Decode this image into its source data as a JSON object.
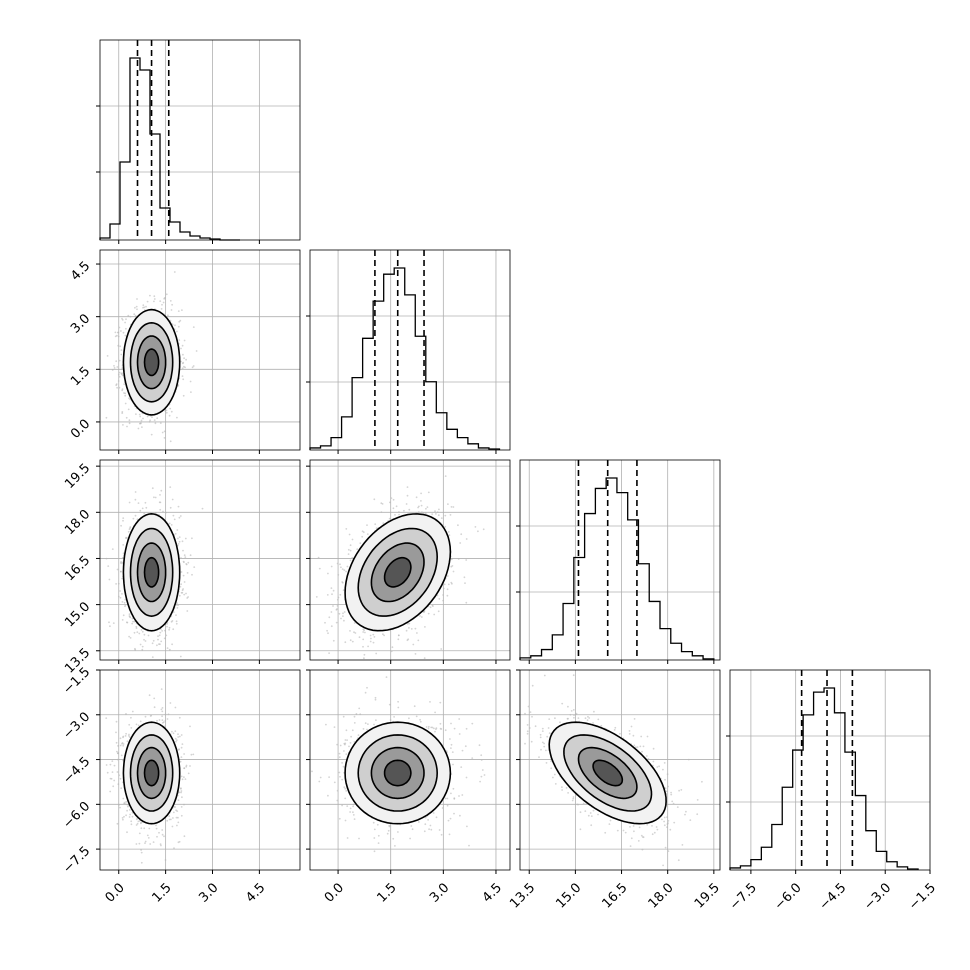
{
  "chart_data": {
    "type": "corner",
    "parameters": [
      {
        "name": "",
        "range": [
          -0.6,
          5.8
        ],
        "ticks": [
          0.0,
          1.5,
          3.0,
          4.5
        ],
        "tick_labels": [
          "0.0",
          "1.5",
          "3.0",
          "4.5"
        ]
      },
      {
        "name": "",
        "range": [
          -0.8,
          4.9
        ],
        "ticks": [
          0.0,
          1.5,
          3.0,
          4.5
        ],
        "tick_labels": [
          "0.0",
          "1.5",
          "3.0",
          "4.5"
        ]
      },
      {
        "name": "",
        "range": [
          13.2,
          19.7
        ],
        "ticks": [
          13.5,
          15.0,
          16.5,
          18.0,
          19.5
        ],
        "tick_labels": [
          "13.5",
          "15.0",
          "16.5",
          "18.0",
          "19.5"
        ]
      },
      {
        "name": "",
        "range": [
          -8.2,
          -1.5
        ],
        "ticks": [
          -7.5,
          -6.0,
          -4.5,
          -3.0,
          -1.5
        ],
        "tick_labels": [
          "−7.5",
          "−6.0",
          "−4.5",
          "−3.0",
          "−1.5"
        ]
      }
    ],
    "marginals": [
      {
        "bins": [
          -0.6,
          -0.28,
          0.04,
          0.36,
          0.68,
          1.0,
          1.32,
          1.64,
          1.96,
          2.28,
          2.6,
          2.92,
          3.24,
          3.56,
          3.88
        ],
        "counts": [
          0.01,
          0.08,
          0.39,
          0.91,
          0.85,
          0.53,
          0.16,
          0.09,
          0.04,
          0.02,
          0.01,
          0.005,
          0,
          0
        ],
        "quantiles": [
          0.6,
          1.05,
          1.6
        ]
      },
      {
        "bins": [
          -0.8,
          -0.5,
          -0.2,
          0.1,
          0.4,
          0.7,
          1.0,
          1.3,
          1.6,
          1.9,
          2.2,
          2.5,
          2.8,
          3.1,
          3.4,
          3.7,
          4.0,
          4.3,
          4.6
        ],
        "counts": [
          0.01,
          0.02,
          0.06,
          0.16,
          0.35,
          0.54,
          0.72,
          0.85,
          0.88,
          0.75,
          0.55,
          0.33,
          0.18,
          0.1,
          0.06,
          0.03,
          0.01,
          0.005
        ],
        "quantiles": [
          1.05,
          1.7,
          2.45
        ]
      },
      {
        "bins": [
          13.2,
          13.55,
          13.9,
          14.25,
          14.6,
          14.95,
          15.3,
          15.65,
          16.0,
          16.35,
          16.7,
          17.05,
          17.4,
          17.75,
          18.1,
          18.45,
          18.8,
          19.15,
          19.5
        ],
        "counts": [
          0.01,
          0.02,
          0.05,
          0.12,
          0.27,
          0.49,
          0.7,
          0.82,
          0.87,
          0.8,
          0.67,
          0.46,
          0.28,
          0.15,
          0.08,
          0.04,
          0.02,
          0.005
        ],
        "quantiles": [
          15.1,
          16.05,
          17.0
        ]
      },
      {
        "bins": [
          -8.2,
          -7.85,
          -7.5,
          -7.15,
          -6.8,
          -6.45,
          -6.1,
          -5.75,
          -5.4,
          -5.05,
          -4.7,
          -4.35,
          -4.0,
          -3.65,
          -3.3,
          -2.95,
          -2.6,
          -2.25,
          -1.9
        ],
        "counts": [
          0.01,
          0.02,
          0.05,
          0.11,
          0.22,
          0.4,
          0.58,
          0.75,
          0.86,
          0.88,
          0.76,
          0.57,
          0.36,
          0.19,
          0.09,
          0.04,
          0.015,
          0.005
        ],
        "quantiles": [
          -5.8,
          -4.95,
          -4.1
        ]
      }
    ],
    "pairs": [
      {
        "x_param": 0,
        "y_param": 1,
        "mean": [
          1.05,
          1.7
        ],
        "sd": [
          0.45,
          0.75
        ],
        "rho": 0.0
      },
      {
        "x_param": 0,
        "y_param": 2,
        "mean": [
          1.05,
          16.05
        ],
        "sd": [
          0.45,
          0.95
        ],
        "rho": 0.0
      },
      {
        "x_param": 1,
        "y_param": 2,
        "mean": [
          1.7,
          16.05
        ],
        "sd": [
          0.75,
          0.95
        ],
        "rho": 0.35
      },
      {
        "x_param": 0,
        "y_param": 3,
        "mean": [
          1.05,
          -4.95
        ],
        "sd": [
          0.45,
          0.85
        ],
        "rho": 0.0
      },
      {
        "x_param": 1,
        "y_param": 3,
        "mean": [
          1.7,
          -4.95
        ],
        "sd": [
          0.75,
          0.85
        ],
        "rho": 0.0
      },
      {
        "x_param": 2,
        "y_param": 3,
        "mean": [
          16.05,
          -4.95
        ],
        "sd": [
          0.95,
          0.85
        ],
        "rho": -0.55
      }
    ],
    "contour_levels_sigma": [
      0.5,
      1.0,
      1.5,
      2.0
    ],
    "grid": true,
    "title": "",
    "colors": {
      "contour": "#000000",
      "scatter": "#b8b8b8",
      "grid": "#b0b0b0"
    }
  }
}
